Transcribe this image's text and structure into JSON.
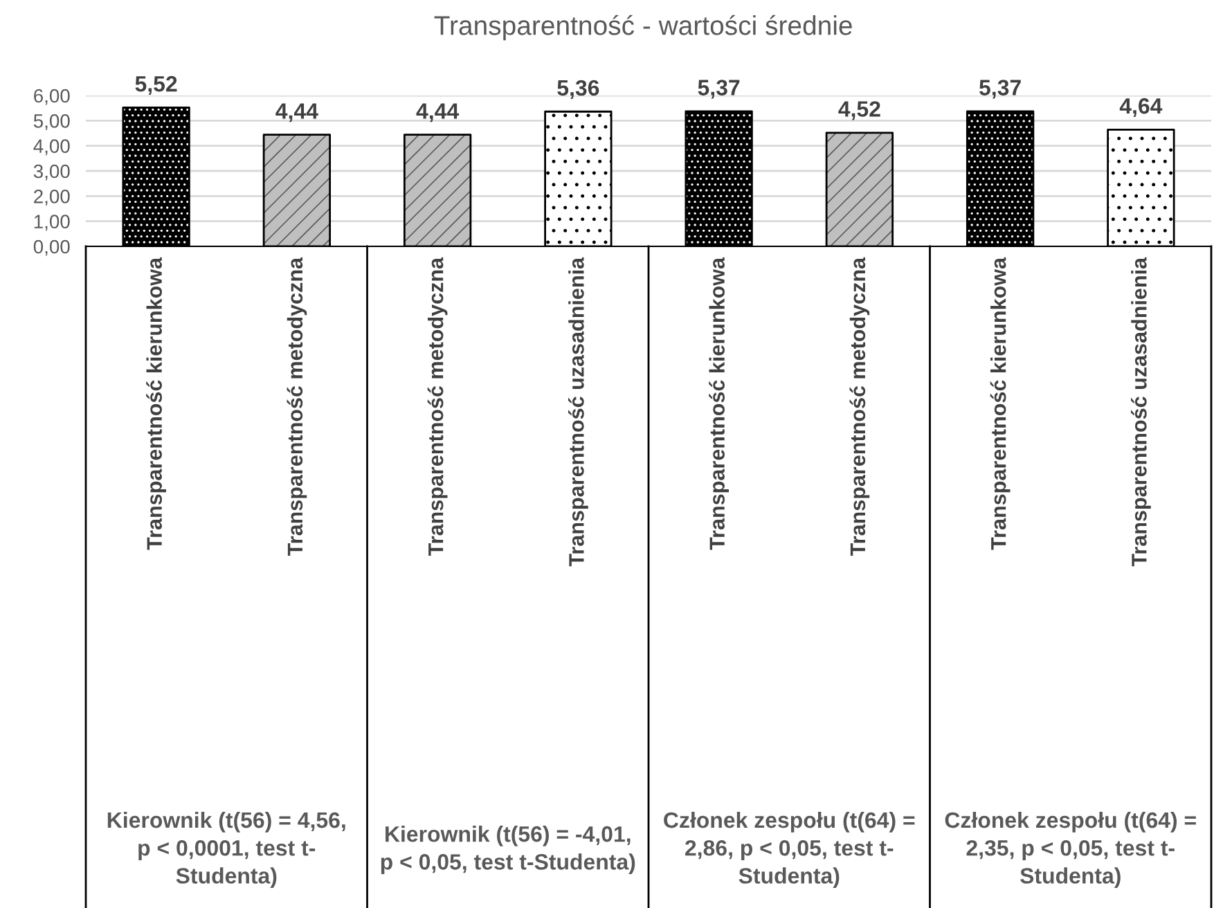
{
  "chart_data": {
    "type": "bar",
    "title": "Transparentność - wartości średnie",
    "categories": [
      "Transparentność kierunkowa",
      "Transparentność metodyczna",
      "Transparentność metodyczna",
      "Transparentność uzasadnienia",
      "Transparentność kierunkowa",
      "Transparentność metodyczna",
      "Transparentność kierunkowa",
      "Transparentność uzasadnienia"
    ],
    "values": [
      5.52,
      4.44,
      4.44,
      5.36,
      5.37,
      4.52,
      5.37,
      4.64
    ],
    "value_labels": [
      "5,52",
      "4,44",
      "4,44",
      "5,36",
      "5,37",
      "4,52",
      "5,37",
      "4,64"
    ],
    "colors": [
      "#000000",
      "#bfbfbf",
      "#bfbfbf",
      "#ffffff",
      "#000000",
      "#bfbfbf",
      "#000000",
      "#ffffff"
    ],
    "ylim": [
      0,
      6
    ],
    "yticks": [
      {
        "value": 0,
        "label": "0,00"
      },
      {
        "value": 1,
        "label": "1,00"
      },
      {
        "value": 2,
        "label": "2,00"
      },
      {
        "value": 3,
        "label": "3,00"
      },
      {
        "value": 4,
        "label": "4,00"
      },
      {
        "value": 5,
        "label": "5,00"
      },
      {
        "value": 6,
        "label": "6,00"
      }
    ],
    "grid": "y",
    "annotations": [
      "Kierownik (t(56) = 4,56, p < 0,0001, test t-Studenta)",
      "Kierownik (t(56) = -4,01, p < 0,05, test t-Studenta)",
      "Członek zespołu (t(64) = 2,86, p < 0,05, test t-Studenta)",
      "Członek zespołu (t(64) = 2,35, p < 0,05, test t-Studenta)"
    ]
  }
}
